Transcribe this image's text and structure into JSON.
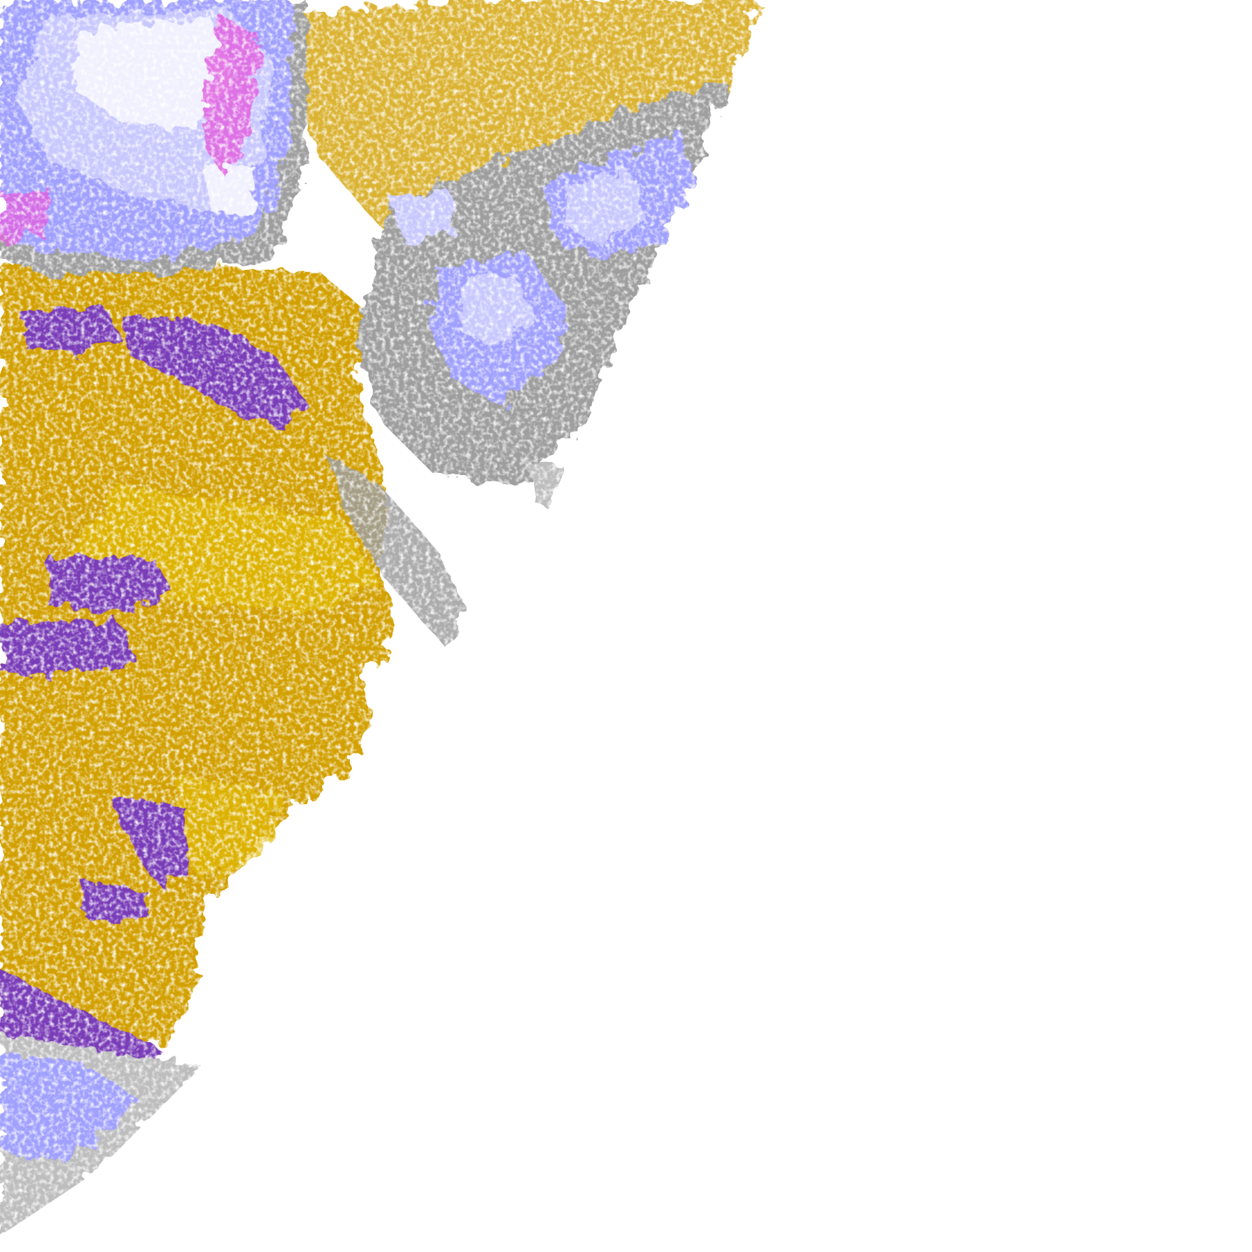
{
  "map": {
    "kind": "satellite cloud-type classification, disk edge",
    "background": "#ffffff",
    "classes_colors": {
      "low_cloud_gold": "#d2a000",
      "mid_gold_light": "#e0b800",
      "thick_purple": "#7a3cb8",
      "gray": "#9e9e9e",
      "light_gray": "#bdbdbd",
      "periwinkle": "#a0a0ff",
      "lavender": "#c8c8ff",
      "near_white": "#f0f0ff",
      "magenta": "#e060e0"
    }
  }
}
